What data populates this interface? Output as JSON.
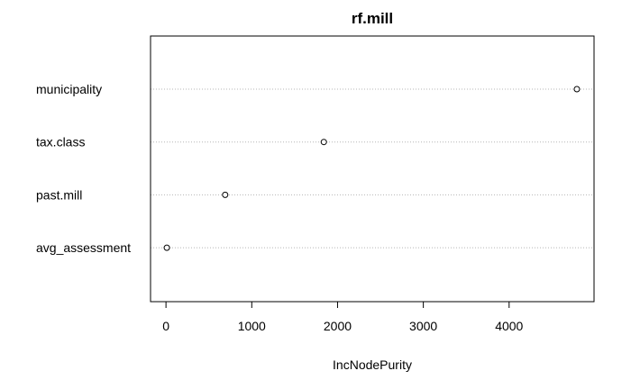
{
  "chart_data": {
    "type": "scatter",
    "title": "rf.mill",
    "xlabel": "IncNodePurity",
    "ylabel": "",
    "categories": [
      "municipality",
      "tax.class",
      "past.mill",
      "avg_assessment"
    ],
    "values": [
      4790,
      1840,
      690,
      10
    ],
    "xlim": [
      -180,
      4990
    ],
    "xticks": [
      0,
      1000,
      2000,
      3000,
      4000
    ],
    "grid": "dotted horizontal guide lines",
    "legend": "none"
  }
}
